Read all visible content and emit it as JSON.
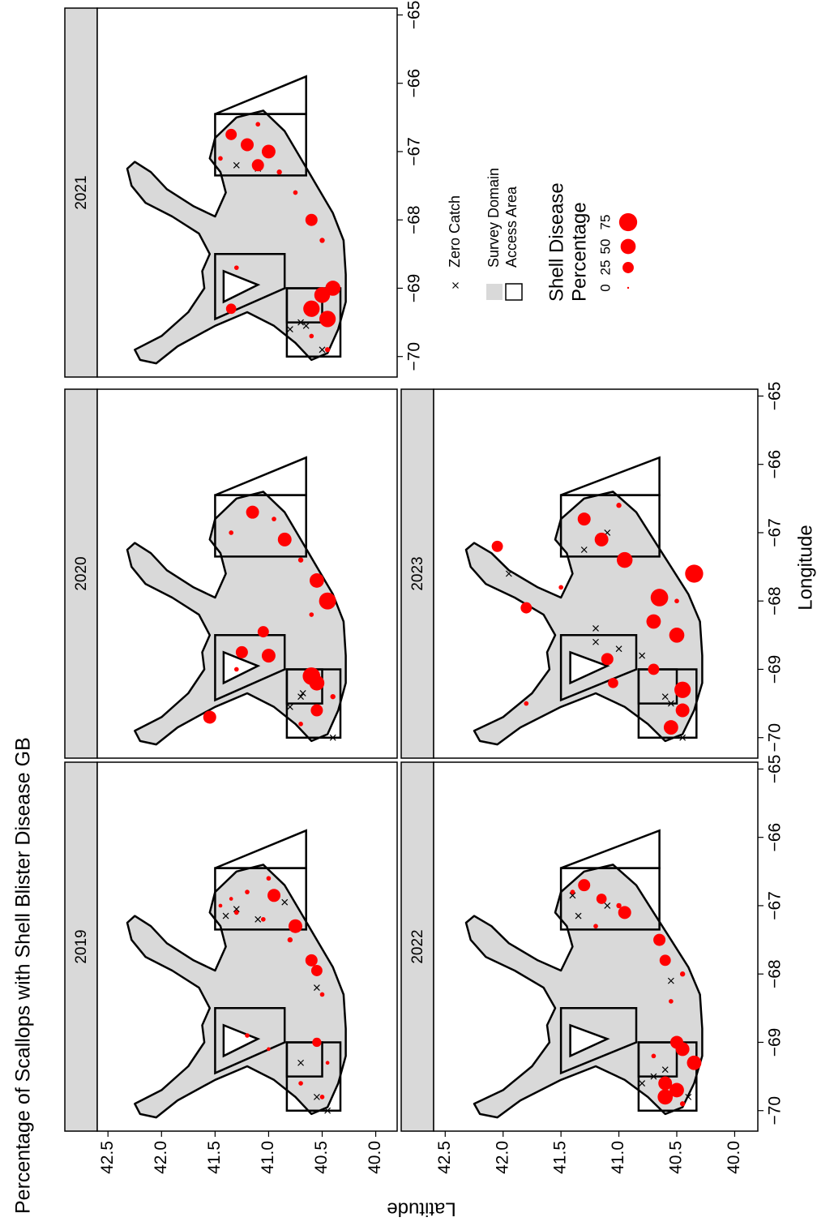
{
  "chart_data": {
    "type": "bubble_map",
    "title": "Percentage of Scallops with Shell Blister Disease GB",
    "xlabel": "Longitude",
    "ylabel": "Latitude",
    "xlim": [
      -70.3,
      -64.9
    ],
    "ylim": [
      39.8,
      42.6
    ],
    "xticks": [
      {
        "value": -70,
        "label": "−70"
      },
      {
        "value": -69,
        "label": "−69"
      },
      {
        "value": -68,
        "label": "−68"
      },
      {
        "value": -67,
        "label": "−67"
      },
      {
        "value": -66,
        "label": "−66"
      },
      {
        "value": -65,
        "label": "−65"
      }
    ],
    "yticks": [
      {
        "value": 40,
        "label": "40.0"
      },
      40.5,
      {
        "value": 41,
        "label": "41.0"
      },
      41.5,
      {
        "value": 42,
        "label": "42.0"
      },
      42.5
    ],
    "point_color": "#ff0000",
    "domain_color": "#d9d9d9",
    "domain": {
      "lon": [
        -70.05,
        -69.9,
        -69.7,
        -69.35,
        -69.0,
        -68.75,
        -68.5,
        -68.2,
        -67.95,
        -67.75,
        -67.5,
        -67.25,
        -67.15,
        -67.3,
        -67.55,
        -67.8,
        -67.95,
        -67.6,
        -67.3,
        -67.1,
        -66.8,
        -66.5,
        -66.4,
        -66.7,
        -67.1,
        -67.5,
        -67.9,
        -68.3,
        -68.8,
        -69.2,
        -69.6,
        -69.95,
        -70.05,
        -69.8,
        -69.55,
        -69.35,
        -69.55,
        -69.85,
        -70.1
      ],
      "lat": [
        42.2,
        42.25,
        42.0,
        41.75,
        41.6,
        41.62,
        41.55,
        41.65,
        41.9,
        42.15,
        42.28,
        42.32,
        42.25,
        42.1,
        41.95,
        41.7,
        41.5,
        41.4,
        41.45,
        41.55,
        41.5,
        41.3,
        41.05,
        40.85,
        40.7,
        40.55,
        40.4,
        40.3,
        40.28,
        40.28,
        40.35,
        40.45,
        40.6,
        40.75,
        40.95,
        41.2,
        41.5,
        41.85,
        42.05
      ]
    },
    "holes": [
      {
        "lon": [
          -69.2,
          -68.75,
          -68.95
        ],
        "lat": [
          41.42,
          41.42,
          41.1
        ]
      }
    ],
    "access_areas": [
      {
        "lon": [
          -69.45,
          -68.5,
          -68.5,
          -69.0
        ],
        "lat": [
          41.5,
          41.5,
          40.85,
          40.85
        ]
      },
      {
        "lon": [
          -70.0,
          -69.0,
          -69.0,
          -70.0
        ],
        "lat": [
          40.83,
          40.83,
          40.33,
          40.33
        ]
      },
      {
        "lon": [
          -69.5,
          -69.0,
          -69.0,
          -69.5
        ],
        "lat": [
          40.83,
          40.83,
          40.5,
          40.5
        ]
      },
      {
        "lon": [
          -67.35,
          -66.45,
          -66.45,
          -67.35
        ],
        "lat": [
          41.5,
          41.5,
          40.65,
          40.65
        ]
      },
      {
        "lon": [
          -66.45,
          -65.9,
          -66.45
        ],
        "lat": [
          41.5,
          40.65,
          40.65
        ]
      }
    ],
    "panels": [
      {
        "name": "2019",
        "lon": [
          -67.3,
          -66.85,
          -67.8,
          -67.95,
          -69.0,
          -67.1,
          -66.8,
          -66.6,
          -67.0,
          -68.9,
          -69.1,
          -69.6,
          -69.8,
          -69.3,
          -67.5,
          -68.3,
          -66.9,
          -67.2
        ],
        "lat": [
          40.75,
          40.95,
          40.6,
          40.55,
          40.55,
          41.3,
          41.2,
          41.0,
          41.45,
          41.2,
          41.0,
          40.7,
          40.5,
          40.45,
          40.8,
          40.5,
          41.35,
          41.05
        ],
        "values": [
          40,
          35,
          30,
          25,
          15,
          2,
          2,
          2,
          1,
          2,
          1,
          2,
          2,
          1,
          3,
          2,
          1,
          2
        ],
        "zero_lon": [
          -67.2,
          -67.05,
          -67.15,
          -69.3,
          -70.0,
          -68.2,
          -66.95,
          -69.8
        ],
        "zero_lat": [
          41.1,
          41.3,
          41.4,
          40.7,
          40.45,
          40.55,
          40.85,
          40.55
        ]
      },
      {
        "name": "2020",
        "lon": [
          -68.0,
          -67.7,
          -69.1,
          -69.2,
          -67.1,
          -66.7,
          -68.8,
          -68.75,
          -69.7,
          -69.6,
          -68.45,
          -67.0,
          -66.8,
          -69.4,
          -69.8,
          -68.2,
          -67.4,
          -69.0
        ],
        "lat": [
          40.45,
          40.55,
          40.6,
          40.55,
          40.85,
          41.15,
          41.0,
          41.25,
          41.55,
          40.55,
          41.05,
          41.35,
          40.95,
          40.4,
          40.7,
          40.6,
          40.7,
          41.3
        ],
        "values": [
          65,
          45,
          70,
          50,
          40,
          35,
          40,
          30,
          35,
          30,
          25,
          2,
          2,
          3,
          2,
          2,
          3,
          2
        ],
        "zero_lon": [
          -69.4,
          -69.35,
          -70.0,
          -69.55
        ],
        "zero_lat": [
          40.7,
          40.68,
          40.4,
          40.8
        ]
      },
      {
        "name": "2021",
        "lon": [
          -69.3,
          -69.1,
          -69.0,
          -69.45,
          -68.0,
          -67.0,
          -66.9,
          -67.2,
          -66.75,
          -69.3,
          -66.6,
          -67.1,
          -68.3,
          -69.7,
          -69.9,
          -67.6,
          -68.7,
          -67.3
        ],
        "lat": [
          40.6,
          40.5,
          40.4,
          40.45,
          40.6,
          41.0,
          41.2,
          41.1,
          41.35,
          41.35,
          41.1,
          41.45,
          40.5,
          40.6,
          40.45,
          40.75,
          41.3,
          40.9
        ],
        "values": [
          60,
          55,
          50,
          60,
          30,
          40,
          35,
          30,
          25,
          20,
          2,
          2,
          3,
          2,
          3,
          2,
          2,
          3
        ],
        "zero_lon": [
          -69.5,
          -69.55,
          -69.6,
          -67.2,
          -67.25,
          -69.9
        ],
        "zero_lat": [
          40.7,
          40.65,
          40.8,
          41.3,
          41.1,
          40.5
        ]
      },
      {
        "name": "2022",
        "lon": [
          -69.8,
          -69.7,
          -69.6,
          -69.3,
          -69.1,
          -69.0,
          -66.7,
          -67.1,
          -67.5,
          -67.8,
          -66.9,
          -68.4,
          -68.0,
          -67.3,
          -66.8,
          -69.9,
          -69.2,
          -67.0
        ],
        "lat": [
          40.6,
          40.5,
          40.6,
          40.35,
          40.45,
          40.5,
          41.3,
          40.95,
          40.65,
          40.6,
          41.15,
          40.55,
          40.45,
          41.2,
          41.4,
          40.45,
          40.7,
          41.0
        ],
        "values": [
          50,
          45,
          40,
          45,
          40,
          35,
          30,
          35,
          30,
          25,
          20,
          2,
          3,
          2,
          2,
          3,
          2,
          3
        ],
        "zero_lon": [
          -69.5,
          -69.6,
          -69.4,
          -66.85,
          -67.15,
          -67.0,
          -68.1,
          -69.8
        ],
        "zero_lat": [
          40.7,
          40.8,
          40.6,
          41.4,
          41.35,
          41.1,
          40.55,
          40.4
        ]
      },
      {
        "name": "2023",
        "lon": [
          -67.6,
          -67.95,
          -67.4,
          -68.3,
          -68.5,
          -69.3,
          -69.6,
          -69.85,
          -67.2,
          -68.1,
          -66.8,
          -67.1,
          -68.85,
          -69.0,
          -69.2,
          -67.8,
          -69.5,
          -66.6,
          -68.0
        ],
        "lat": [
          40.35,
          40.65,
          40.95,
          40.7,
          40.5,
          40.45,
          40.45,
          40.55,
          42.05,
          41.8,
          41.3,
          41.15,
          41.1,
          40.7,
          41.05,
          41.5,
          41.8,
          41.0,
          40.5
        ],
        "values": [
          75,
          70,
          55,
          45,
          50,
          60,
          40,
          45,
          25,
          25,
          35,
          40,
          30,
          25,
          20,
          2,
          2,
          3,
          2
        ],
        "zero_lon": [
          -68.7,
          -68.8,
          -68.6,
          -69.4,
          -69.5,
          -70.0,
          -67.25,
          -67.0,
          -67.6,
          -68.4
        ],
        "zero_lat": [
          41.0,
          40.8,
          41.2,
          40.6,
          40.55,
          40.45,
          41.3,
          41.1,
          41.95,
          41.2
        ]
      }
    ],
    "legend": {
      "zero_label": "Zero Catch",
      "domain_label": "Survey Domain",
      "access_label": "Access Area",
      "size_title": [
        "Shell Disease",
        "Percentage"
      ],
      "size_values": [
        0,
        25,
        50,
        75
      ]
    }
  }
}
